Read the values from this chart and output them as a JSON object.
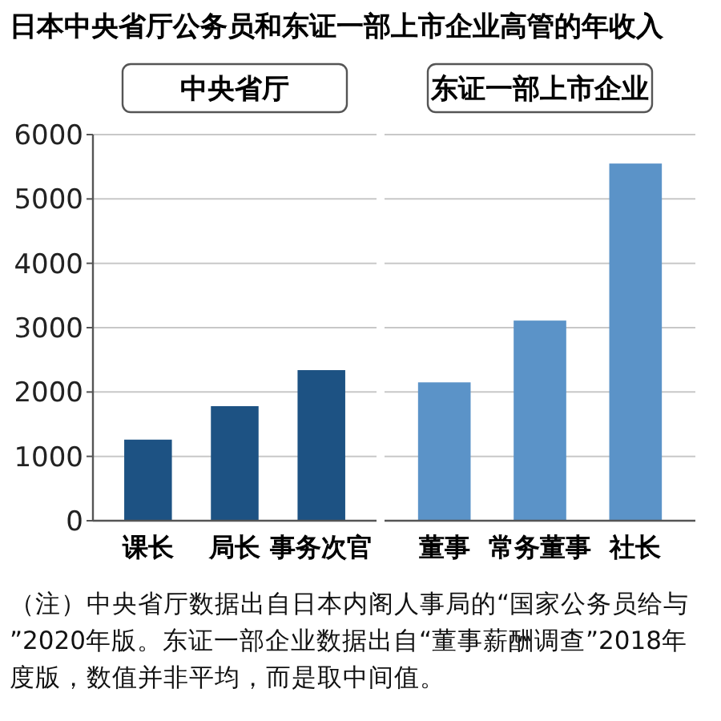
{
  "chart_data": [
    {
      "type": "bar",
      "title": "日本中央省厅公务员和东证一部上市企业高管的年收入",
      "subtitle": "中央省厅",
      "categories": [
        "课长",
        "局长",
        "事务次官"
      ],
      "values": [
        1260,
        1780,
        2340
      ],
      "color": "#1d5283",
      "ylim": [
        0,
        6000
      ],
      "yticks": [
        0,
        1000,
        2000,
        3000,
        4000,
        5000,
        6000
      ],
      "grid": "y",
      "annotations": [
        "（注）中央省厅数据出自日本内阁人事局的“国家公务员给与”2020年版。东证一部企业数据出自“董事薪酬调查”2018年度版，数值并非平均，而是取中间值。"
      ]
    },
    {
      "type": "bar",
      "subtitle": "东证一部上市企业",
      "categories": [
        "董事",
        "常务董事",
        "社长"
      ],
      "values": [
        2150,
        3110,
        5550
      ],
      "color": "#5b93c8",
      "ylim": [
        0,
        6000
      ],
      "yticks": [
        0,
        1000,
        2000,
        3000,
        4000,
        5000,
        6000
      ],
      "grid": "y",
      "tick_labels": "x"
    }
  ]
}
